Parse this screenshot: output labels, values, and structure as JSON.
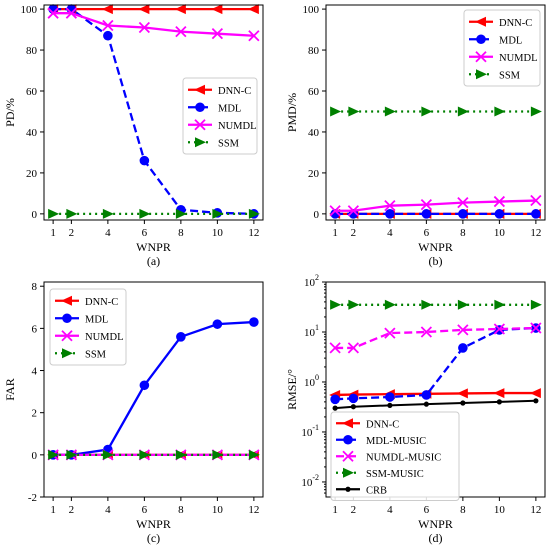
{
  "chart_data": [
    {
      "type": "line",
      "panel": "(a)",
      "xlabel": "WNPR",
      "ylabel": "PD/%",
      "x": [
        1,
        2,
        4,
        6,
        8,
        10,
        12
      ],
      "xticks": [
        "1",
        "2",
        "4",
        "6",
        "8",
        "10",
        "12"
      ],
      "xlim": [
        0.5,
        12.5
      ],
      "ylim": [
        -3,
        102
      ],
      "yscale": "linear",
      "yticks": [
        0,
        20,
        40,
        60,
        80,
        100
      ],
      "ytick_labels": [
        "0",
        "20",
        "40",
        "60",
        "80",
        "100"
      ],
      "legend_position": "center-right",
      "series": [
        {
          "name": "DNN-C",
          "color": "#ff0000",
          "style": "solid",
          "marker": "left-triangle",
          "values": [
            100,
            100,
            100,
            100,
            100,
            100,
            100
          ]
        },
        {
          "name": "MDL",
          "color": "#0000ff",
          "style": "dashed",
          "marker": "circle",
          "values": [
            100,
            100,
            87,
            26,
            2,
            0.5,
            0
          ]
        },
        {
          "name": "NUMDL",
          "color": "#ff00ff",
          "style": "solid",
          "marker": "x",
          "values": [
            98,
            98,
            92,
            91,
            89,
            88,
            87
          ]
        },
        {
          "name": "SSM",
          "color": "#008000",
          "style": "dotted",
          "marker": "right-triangle",
          "values": [
            0,
            0,
            0,
            0,
            0,
            0,
            0
          ]
        }
      ]
    },
    {
      "type": "line",
      "panel": "(b)",
      "xlabel": "WNPR",
      "ylabel": "PMD/%",
      "x": [
        1,
        2,
        4,
        6,
        8,
        10,
        12
      ],
      "xticks": [
        "1",
        "2",
        "4",
        "6",
        "8",
        "10",
        "12"
      ],
      "xlim": [
        0.5,
        12.5
      ],
      "ylim": [
        -3,
        102
      ],
      "yscale": "linear",
      "yticks": [
        0,
        20,
        40,
        60,
        80,
        100
      ],
      "ytick_labels": [
        "0",
        "20",
        "40",
        "60",
        "80",
        "100"
      ],
      "legend_position": "top-right",
      "series": [
        {
          "name": "DNN-C",
          "color": "#ff0000",
          "style": "solid",
          "marker": "left-triangle",
          "values": [
            0,
            0,
            0,
            0,
            0,
            0,
            0
          ]
        },
        {
          "name": "MDL",
          "color": "#0000ff",
          "style": "dashed",
          "marker": "circle",
          "values": [
            0,
            0,
            0,
            0,
            0,
            0,
            0
          ]
        },
        {
          "name": "NUMDL",
          "color": "#ff00ff",
          "style": "solid",
          "marker": "x",
          "values": [
            1.5,
            1.5,
            4,
            4.5,
            5.5,
            6,
            6.5
          ]
        },
        {
          "name": "SSM",
          "color": "#008000",
          "style": "dotted",
          "marker": "right-triangle",
          "values": [
            50,
            50,
            50,
            50,
            50,
            50,
            50
          ]
        }
      ]
    },
    {
      "type": "line",
      "panel": "(c)",
      "xlabel": "WNPR",
      "ylabel": "FAR",
      "x": [
        1,
        2,
        4,
        6,
        8,
        10,
        12
      ],
      "xticks": [
        "1",
        "2",
        "4",
        "6",
        "8",
        "10",
        "12"
      ],
      "xlim": [
        0.5,
        12.5
      ],
      "ylim": [
        -2,
        8.2
      ],
      "yscale": "linear",
      "yticks": [
        -2,
        0,
        2,
        4,
        6,
        8
      ],
      "ytick_labels": [
        "-2",
        "0",
        "2",
        "4",
        "6",
        "8"
      ],
      "legend_position": "top-left",
      "series": [
        {
          "name": "DNN-C",
          "color": "#ff0000",
          "style": "solid",
          "marker": "left-triangle",
          "values": [
            0,
            0,
            0,
            0,
            0,
            0,
            0
          ]
        },
        {
          "name": "MDL",
          "color": "#0000ff",
          "style": "solid",
          "marker": "circle",
          "values": [
            0,
            0,
            0.25,
            3.3,
            5.6,
            6.2,
            6.3
          ]
        },
        {
          "name": "NUMDL",
          "color": "#ff00ff",
          "style": "solid",
          "marker": "x",
          "values": [
            0,
            0,
            0,
            0,
            0,
            0,
            0
          ]
        },
        {
          "name": "SSM",
          "color": "#008000",
          "style": "dotted",
          "marker": "right-triangle",
          "values": [
            0,
            0,
            0,
            0,
            0,
            0,
            0
          ]
        }
      ]
    },
    {
      "type": "line",
      "panel": "(d)",
      "xlabel": "WNPR",
      "ylabel": "RMSE/°",
      "x": [
        1,
        2,
        4,
        6,
        8,
        10,
        12
      ],
      "xticks": [
        "1",
        "2",
        "4",
        "6",
        "8",
        "10",
        "12"
      ],
      "xlim": [
        0.5,
        12.5
      ],
      "ylim": [
        0.005,
        100
      ],
      "yscale": "log",
      "yticks": [
        0.01,
        0.1,
        1,
        10,
        100
      ],
      "ytick_labels": [
        "10^-2",
        "10^-1",
        "10^0",
        "10^1",
        "10^2"
      ],
      "legend_position": "lower-left",
      "series": [
        {
          "name": "DNN-C",
          "color": "#ff0000",
          "style": "solid",
          "marker": "left-triangle",
          "values": [
            0.55,
            0.56,
            0.57,
            0.58,
            0.59,
            0.6,
            0.6
          ]
        },
        {
          "name": "MDL-MUSIC",
          "color": "#0000ff",
          "style": "dashed",
          "marker": "circle",
          "values": [
            0.45,
            0.47,
            0.5,
            0.55,
            4.8,
            11,
            12
          ]
        },
        {
          "name": "NUMDL-MUSIC",
          "color": "#ff00ff",
          "style": "dashed",
          "marker": "x",
          "values": [
            4.8,
            4.8,
            9.5,
            10,
            11,
            11.5,
            12
          ]
        },
        {
          "name": "SSM-MUSIC",
          "color": "#008000",
          "style": "dotted",
          "marker": "right-triangle",
          "values": [
            35,
            35,
            35,
            35,
            35,
            35,
            35
          ]
        },
        {
          "name": "CRB",
          "color": "#000000",
          "style": "solid",
          "marker": "dot",
          "values": [
            0.3,
            0.32,
            0.34,
            0.36,
            0.38,
            0.4,
            0.42
          ]
        }
      ]
    }
  ]
}
